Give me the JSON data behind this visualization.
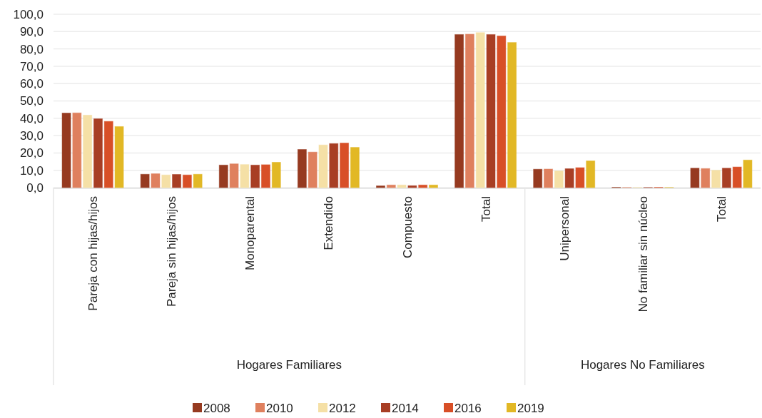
{
  "chart_data": {
    "type": "bar",
    "categories": [
      "Pareja con hijas/hijos",
      "Pareja sin hijas/hijos",
      "Monoparental",
      "Extendido",
      "Compuesto",
      "Total",
      "Unipersonal",
      "No familiar sin núcleo",
      "Total"
    ],
    "series": [
      {
        "name": "2008",
        "color": "#963a20",
        "values": [
          43.0,
          7.7,
          13.0,
          22.0,
          1.0,
          88.3,
          10.6,
          0.2,
          11.2
        ]
      },
      {
        "name": "2010",
        "color": "#df805e",
        "values": [
          43.1,
          8.0,
          13.7,
          20.5,
          1.5,
          88.5,
          10.7,
          0.1,
          11.0
        ]
      },
      {
        "name": "2012",
        "color": "#f5e0a6",
        "values": [
          41.8,
          7.3,
          13.3,
          24.6,
          1.5,
          89.4,
          9.6,
          0.1,
          10.0
        ]
      },
      {
        "name": "2014",
        "color": "#a83e24",
        "values": [
          39.7,
          7.6,
          13.0,
          25.4,
          1.1,
          88.3,
          10.9,
          0.1,
          11.2
        ]
      },
      {
        "name": "2016",
        "color": "#d84f27",
        "values": [
          38.2,
          7.3,
          13.2,
          25.7,
          1.5,
          87.5,
          11.5,
          0.2,
          11.9
        ]
      },
      {
        "name": "2019",
        "color": "#e2b825",
        "values": [
          35.2,
          7.7,
          14.6,
          23.2,
          1.5,
          83.7,
          15.4,
          0.1,
          15.9
        ]
      }
    ],
    "ylim": [
      0,
      100
    ],
    "yticks": [
      {
        "value": 0,
        "label": "0,0"
      },
      {
        "value": 10,
        "label": "10,0"
      },
      {
        "value": 20,
        "label": "20,0"
      },
      {
        "value": 30,
        "label": "30,0"
      },
      {
        "value": 40,
        "label": "40,0"
      },
      {
        "value": 50,
        "label": "50,0"
      },
      {
        "value": 60,
        "label": "60,0"
      },
      {
        "value": 70,
        "label": "70,0"
      },
      {
        "value": 80,
        "label": "80,0"
      },
      {
        "value": 90,
        "label": "90,0"
      },
      {
        "value": 100,
        "label": "100,0"
      }
    ],
    "grid": "y",
    "legend": "bottom",
    "annotations": [
      "Hogares Familiares",
      "Hogares No Familiares"
    ]
  }
}
